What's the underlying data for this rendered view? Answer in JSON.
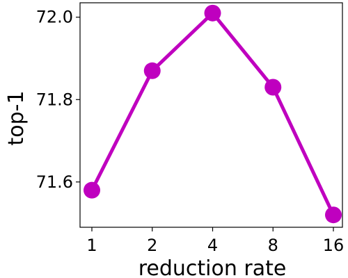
{
  "chart_data": {
    "type": "line",
    "title": "",
    "xlabel": "reduction rate",
    "ylabel": "top-1",
    "categories": [
      "1",
      "2",
      "4",
      "8",
      "16"
    ],
    "series": [
      {
        "values": [
          71.58,
          71.87,
          72.01,
          71.83,
          71.52
        ]
      }
    ],
    "ylim": [
      71.49,
      72.035
    ],
    "yticks": [
      71.6,
      71.8,
      72.0
    ],
    "ytick_labels": [
      "71.6",
      "71.8",
      "72.0"
    ],
    "grid": false,
    "legend": "none",
    "line_color": "#BF00BF",
    "marker": "circle"
  }
}
